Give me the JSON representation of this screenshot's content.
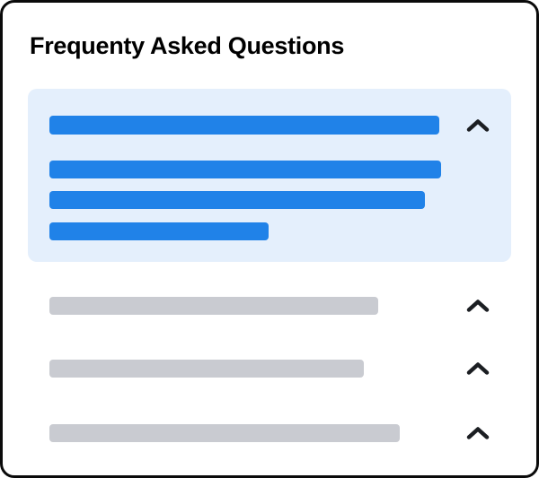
{
  "page": {
    "title": "Frequenty Asked Questions"
  },
  "colors": {
    "accent_blue": "#2082E8",
    "panel_blue": "#E4EFFC",
    "skeleton_gray": "#C9CBD1",
    "card_border": "#0A0A0A",
    "card_bg": "#FFFFFF",
    "chevron": "#1B1E22"
  },
  "faq": {
    "items": [
      {
        "state": "expanded",
        "icon": "chevron-up-icon",
        "question_bar_width": 434,
        "answer_bar_widths": [
          436,
          418,
          244
        ]
      },
      {
        "state": "collapsed",
        "icon": "chevron-up-icon",
        "question_bar_width": 366
      },
      {
        "state": "collapsed",
        "icon": "chevron-up-icon",
        "question_bar_width": 350
      },
      {
        "state": "collapsed",
        "icon": "chevron-up-icon",
        "question_bar_width": 390
      }
    ]
  }
}
